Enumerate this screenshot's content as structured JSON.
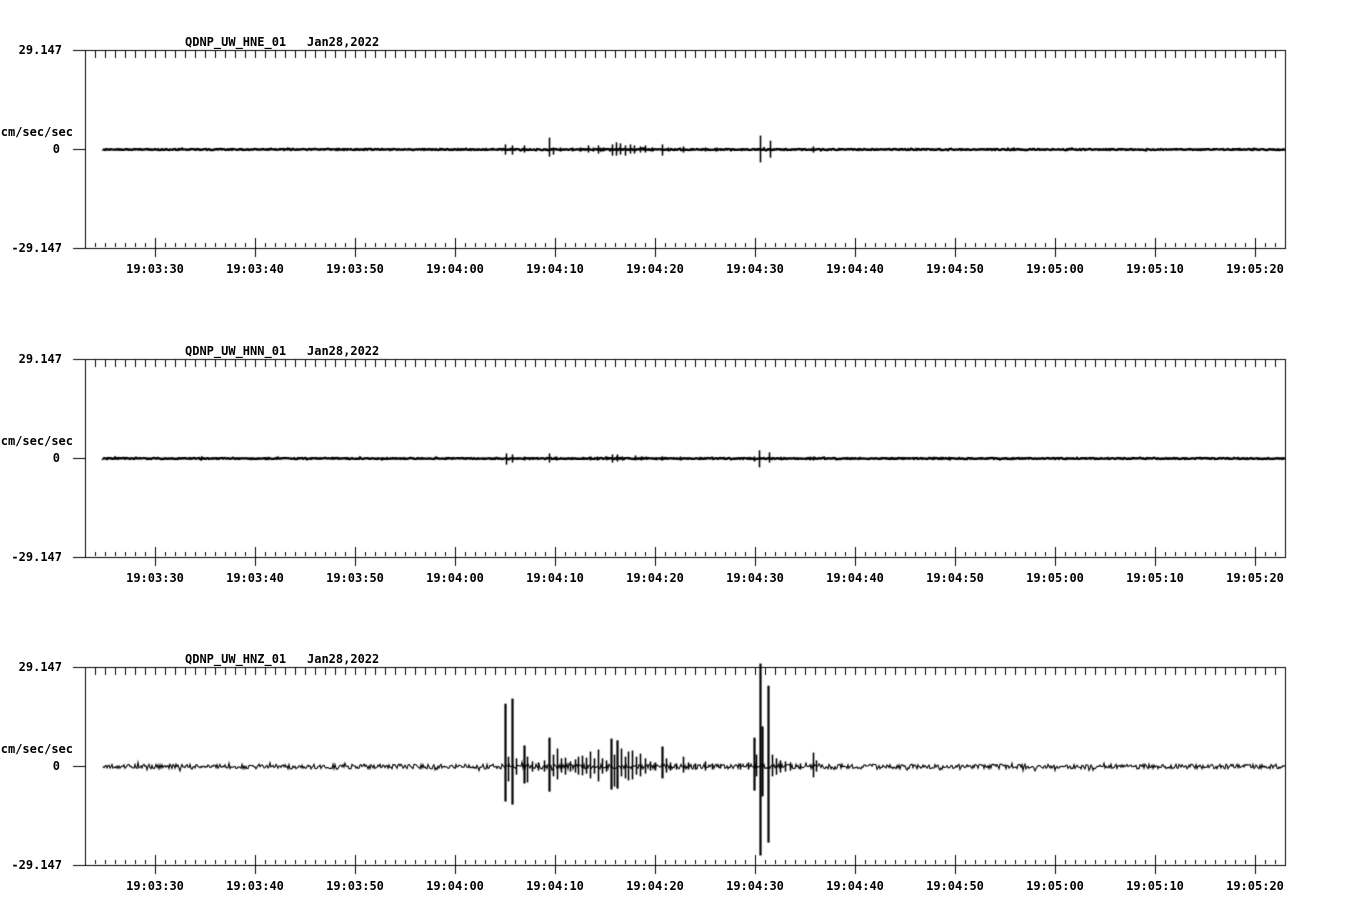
{
  "window": {
    "background": "#ffffff",
    "ink_color": "#000000"
  },
  "chart_data": [
    {
      "type": "line",
      "chart_kind": "seismogram-waveform",
      "title": "QDNP_UW_HNE_01",
      "date_label": "Jan28,2022",
      "ylabel": "cm/sec/sec",
      "ylim": [
        -29.147,
        29.147
      ],
      "ytick_labels": {
        "top": "29.147",
        "zero": "0",
        "bottom": "-29.147"
      },
      "xlim_time": [
        "19:03:23",
        "19:05:23"
      ],
      "x_window_seconds": 120,
      "x_minor_tick_interval_s": 1,
      "x_major_tick_interval_s": 10,
      "x_first_major_tick_offset_s": 7,
      "xtick_labels": [
        "19:03:30",
        "19:03:40",
        "19:03:50",
        "19:04:00",
        "19:04:10",
        "19:04:20",
        "19:04:30",
        "19:04:40",
        "19:04:50",
        "19:05:00",
        "19:05:10",
        "19:05:20"
      ],
      "grid": false,
      "legend": false,
      "trace": {
        "starts_at_s": 1.8,
        "noise_amp": 0.15,
        "base_linewidth": 2.4,
        "seed": 11,
        "spike_units": "cm/sec/sec",
        "spikes": [
          [
            42.0,
            1.5,
            1.5
          ],
          [
            42.7,
            1.2,
            1.5
          ],
          [
            43.9,
            1.2,
            0.9
          ],
          [
            46.4,
            3.5,
            2.1
          ],
          [
            46.8,
            0.6,
            1.5
          ],
          [
            47.5,
            0.6,
            0.6
          ],
          [
            48.7,
            0.6,
            0.6
          ],
          [
            49.5,
            0.6,
            0.6
          ],
          [
            50.3,
            1.2,
            0.9
          ],
          [
            50.8,
            0.6,
            0.6
          ],
          [
            51.3,
            1.2,
            1.2
          ],
          [
            51.8,
            0.6,
            0.6
          ],
          [
            52.7,
            1.5,
            1.8
          ],
          [
            53.1,
            2.1,
            1.8
          ],
          [
            53.5,
            1.8,
            1.5
          ],
          [
            54.0,
            1.2,
            1.8
          ],
          [
            54.5,
            1.5,
            1.2
          ],
          [
            54.9,
            1.2,
            1.2
          ],
          [
            55.5,
            0.9,
            0.9
          ],
          [
            56.0,
            1.2,
            0.9
          ],
          [
            56.7,
            0.6,
            0.6
          ],
          [
            57.7,
            1.5,
            1.8
          ],
          [
            58.3,
            0.6,
            0.6
          ],
          [
            59.8,
            0.9,
            0.9
          ],
          [
            62.0,
            0.6,
            0.6
          ],
          [
            67.5,
            4.1,
            3.8
          ],
          [
            68.5,
            2.6,
            2.4
          ],
          [
            72.8,
            0.9,
            0.9
          ]
        ]
      }
    },
    {
      "type": "line",
      "chart_kind": "seismogram-waveform",
      "title": "QDNP_UW_HNN_01",
      "date_label": "Jan28,2022",
      "ylabel": "cm/sec/sec",
      "ylim": [
        -29.147,
        29.147
      ],
      "ytick_labels": {
        "top": "29.147",
        "zero": "0",
        "bottom": "-29.147"
      },
      "xlim_time": [
        "19:03:23",
        "19:05:23"
      ],
      "x_window_seconds": 120,
      "x_minor_tick_interval_s": 1,
      "x_major_tick_interval_s": 10,
      "x_first_major_tick_offset_s": 7,
      "xtick_labels": [
        "19:03:30",
        "19:03:40",
        "19:03:50",
        "19:04:00",
        "19:04:10",
        "19:04:20",
        "19:04:30",
        "19:04:40",
        "19:04:50",
        "19:05:00",
        "19:05:10",
        "19:05:20"
      ],
      "grid": false,
      "legend": false,
      "trace": {
        "starts_at_s": 1.8,
        "noise_amp": 0.15,
        "base_linewidth": 2.4,
        "seed": 22,
        "spike_units": "cm/sec/sec",
        "spikes": [
          [
            42.1,
            1.5,
            1.8
          ],
          [
            42.7,
            1.2,
            1.2
          ],
          [
            43.9,
            0.6,
            0.6
          ],
          [
            46.4,
            1.5,
            1.2
          ],
          [
            47.1,
            0.6,
            0.6
          ],
          [
            48.7,
            0.3,
            0.3
          ],
          [
            50.5,
            0.6,
            0.6
          ],
          [
            51.2,
            0.6,
            0.6
          ],
          [
            52.7,
            1.2,
            1.2
          ],
          [
            53.2,
            1.2,
            0.9
          ],
          [
            53.7,
            0.6,
            0.6
          ],
          [
            55.0,
            0.9,
            0.6
          ],
          [
            55.6,
            0.6,
            0.6
          ],
          [
            57.7,
            0.6,
            0.6
          ],
          [
            59.5,
            0.6,
            0.6
          ],
          [
            66.9,
            0.6,
            0.9
          ],
          [
            67.4,
            2.4,
            2.6
          ],
          [
            68.4,
            1.8,
            1.2
          ],
          [
            72.8,
            0.6,
            0.6
          ]
        ]
      }
    },
    {
      "type": "line",
      "chart_kind": "seismogram-waveform",
      "title": "QDNP_UW_HNZ_01",
      "date_label": "Jan28,2022",
      "ylabel": "cm/sec/sec",
      "ylim": [
        -29.147,
        29.147
      ],
      "ytick_labels": {
        "top": "29.147",
        "zero": "0",
        "bottom": "-29.147"
      },
      "xlim_time": [
        "19:03:23",
        "19:05:23"
      ],
      "x_window_seconds": 120,
      "x_minor_tick_interval_s": 1,
      "x_major_tick_interval_s": 10,
      "x_first_major_tick_offset_s": 7,
      "xtick_labels": [
        "19:03:30",
        "19:03:40",
        "19:03:50",
        "19:04:00",
        "19:04:10",
        "19:04:20",
        "19:04:30",
        "19:04:40",
        "19:04:50",
        "19:05:00",
        "19:05:10",
        "19:05:20"
      ],
      "grid": false,
      "legend": false,
      "trace": {
        "starts_at_s": 1.8,
        "noise_amp": 0.7,
        "base_linewidth": 1.1,
        "seed": 33,
        "spike_units": "cm/sec/sec",
        "spikes": [
          [
            42.0,
            18.5,
            10.3
          ],
          [
            42.3,
            2.9,
            4.4
          ],
          [
            42.7,
            20.0,
            11.2
          ],
          [
            43.1,
            2.4,
            2.4
          ],
          [
            43.9,
            6.2,
            5.0
          ],
          [
            44.2,
            2.9,
            4.7
          ],
          [
            44.7,
            1.5,
            1.5
          ],
          [
            45.3,
            1.2,
            1.2
          ],
          [
            45.9,
            1.8,
            1.5
          ],
          [
            46.4,
            8.5,
            7.4
          ],
          [
            46.8,
            3.5,
            2.9
          ],
          [
            47.2,
            5.3,
            3.8
          ],
          [
            47.6,
            2.4,
            1.8
          ],
          [
            48.0,
            2.6,
            2.4
          ],
          [
            48.5,
            1.5,
            1.5
          ],
          [
            49.0,
            2.1,
            1.8
          ],
          [
            49.3,
            2.9,
            2.4
          ],
          [
            49.7,
            3.2,
            2.6
          ],
          [
            50.1,
            2.6,
            2.1
          ],
          [
            50.5,
            4.4,
            3.5
          ],
          [
            50.9,
            2.4,
            2.1
          ],
          [
            51.3,
            5.0,
            4.4
          ],
          [
            51.7,
            2.4,
            2.1
          ],
          [
            52.1,
            1.8,
            1.5
          ],
          [
            52.6,
            8.2,
            6.8
          ],
          [
            52.9,
            3.5,
            5.9
          ],
          [
            53.2,
            7.7,
            6.5
          ],
          [
            53.6,
            5.3,
            2.9
          ],
          [
            54.0,
            2.9,
            3.5
          ],
          [
            54.3,
            4.4,
            4.1
          ],
          [
            54.7,
            4.7,
            3.8
          ],
          [
            55.1,
            2.9,
            2.4
          ],
          [
            55.5,
            3.8,
            2.9
          ],
          [
            56.0,
            2.4,
            2.1
          ],
          [
            56.5,
            1.5,
            1.2
          ],
          [
            57.0,
            1.2,
            1.2
          ],
          [
            57.7,
            5.9,
            3.5
          ],
          [
            58.1,
            2.4,
            1.8
          ],
          [
            58.5,
            1.2,
            1.2
          ],
          [
            59.1,
            0.9,
            0.9
          ],
          [
            59.8,
            2.9,
            1.8
          ],
          [
            60.3,
            1.2,
            0.9
          ],
          [
            61.0,
            0.9,
            0.9
          ],
          [
            62.0,
            1.5,
            1.2
          ],
          [
            62.7,
            0.9,
            0.9
          ],
          [
            63.5,
            0.6,
            0.6
          ],
          [
            65.5,
            0.9,
            0.9
          ],
          [
            66.3,
            1.2,
            0.9
          ],
          [
            66.9,
            8.5,
            7.1
          ],
          [
            67.1,
            3.5,
            2.9
          ],
          [
            67.5,
            30.3,
            26.2
          ],
          [
            67.7,
            11.8,
            8.8
          ],
          [
            68.3,
            23.8,
            22.4
          ],
          [
            68.7,
            3.5,
            2.9
          ],
          [
            69.1,
            2.4,
            2.4
          ],
          [
            69.5,
            1.8,
            1.8
          ],
          [
            70.0,
            1.5,
            1.5
          ],
          [
            70.5,
            1.2,
            1.2
          ],
          [
            71.5,
            0.9,
            0.9
          ],
          [
            72.8,
            4.1,
            3.2
          ],
          [
            73.1,
            1.8,
            1.5
          ]
        ]
      }
    }
  ]
}
